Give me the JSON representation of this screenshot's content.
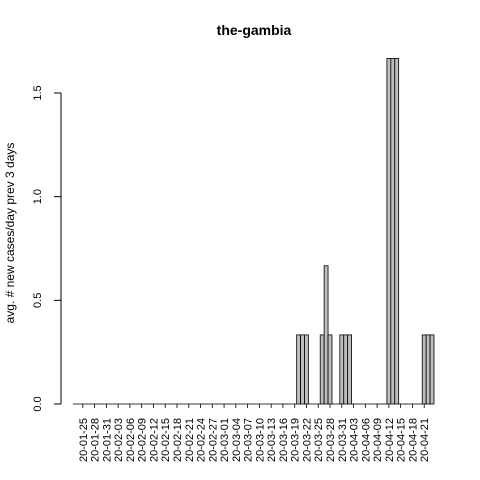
{
  "chart_data": {
    "type": "bar",
    "title": "the-gambia",
    "xlabel": "",
    "ylabel": "avg. # new cases/day prev  3  days",
    "ylim": [
      0,
      1.7
    ],
    "y_ticks": [
      0.0,
      0.5,
      1.0,
      1.5
    ],
    "y_tick_labels": [
      "0.0",
      "0.5",
      "1.0",
      "1.5"
    ],
    "x_tick_labels": [
      "20-01-25",
      "20-01-28",
      "20-01-31",
      "20-02-03",
      "20-02-06",
      "20-02-09",
      "20-02-12",
      "20-02-15",
      "20-02-18",
      "20-02-21",
      "20-02-24",
      "20-02-27",
      "20-03-01",
      "20-03-04",
      "20-03-07",
      "20-03-10",
      "20-03-13",
      "20-03-16",
      "20-03-19",
      "20-03-22",
      "20-03-25",
      "20-03-28",
      "20-03-31",
      "20-04-03",
      "20-04-06",
      "20-04-09",
      "20-04-12",
      "20-04-15",
      "20-04-18",
      "20-04-21"
    ],
    "x_start": "2020-01-23",
    "values": [
      0,
      0,
      0,
      0,
      0,
      0,
      0,
      0,
      0,
      0,
      0,
      0,
      0,
      0,
      0,
      0,
      0,
      0,
      0,
      0,
      0,
      0,
      0,
      0,
      0,
      0,
      0,
      0,
      0,
      0,
      0,
      0,
      0,
      0,
      0,
      0,
      0,
      0,
      0,
      0,
      0,
      0,
      0,
      0,
      0,
      0,
      0,
      0,
      0,
      0,
      0,
      0,
      0,
      0,
      0,
      0,
      0,
      0.3333,
      0.3333,
      0.3333,
      0,
      0,
      0,
      0.3333,
      0.6667,
      0.3333,
      0,
      0,
      0.3333,
      0.3333,
      0.3333,
      0,
      0,
      0,
      0,
      0,
      0,
      0,
      0,
      0,
      1.6667,
      1.6667,
      1.6667,
      0,
      0,
      0,
      0,
      0,
      0,
      0.3333,
      0.3333,
      0.3333
    ],
    "bar_fill": "#bebebe",
    "bar_stroke": "#000000",
    "grid": false,
    "legend": "none"
  }
}
